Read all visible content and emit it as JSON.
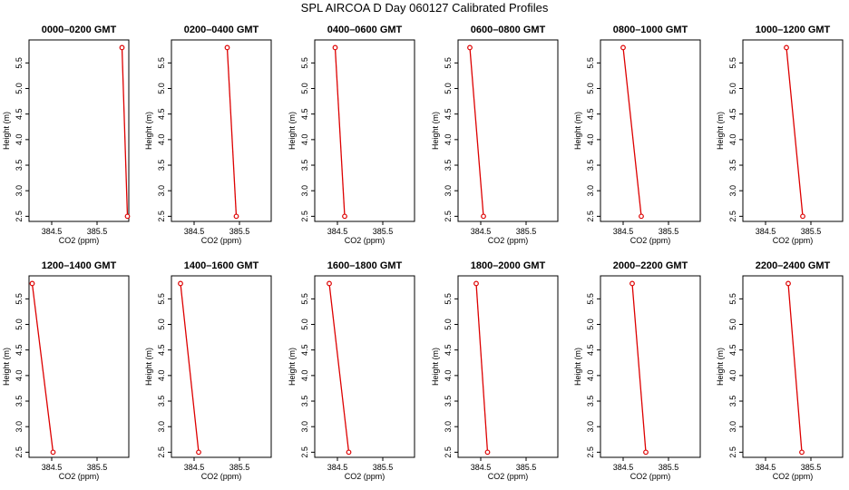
{
  "title": "SPL AIRCOA D  Day 060127  Calibrated Profiles",
  "colors": {
    "series": "#dd0000",
    "axis": "#000000"
  },
  "chart_data": [
    {
      "type": "line",
      "title": "0000–0200 GMT",
      "xlabel": "CO2 (ppm)",
      "ylabel": "Height (m)",
      "xlim": [
        384.0,
        386.2
      ],
      "ylim": [
        2.4,
        5.95
      ],
      "xticks": [
        384.5,
        385.5
      ],
      "xtick_labels": [
        "384.5",
        "385.5"
      ],
      "yticks": [
        2.5,
        3.0,
        3.5,
        4.0,
        4.5,
        5.0,
        5.5
      ],
      "ytick_labels": [
        "2.5",
        "3.0",
        "3.5",
        "4.0",
        "4.5",
        "5.0",
        "5.5"
      ],
      "x": [
        386.05,
        386.17
      ],
      "y": [
        5.8,
        2.5
      ]
    },
    {
      "type": "line",
      "title": "0200–0400 GMT",
      "xlabel": "CO2 (ppm)",
      "ylabel": "Height (m)",
      "xlim": [
        384.0,
        386.2
      ],
      "ylim": [
        2.4,
        5.95
      ],
      "xticks": [
        384.5,
        385.5
      ],
      "xtick_labels": [
        "384.5",
        "385.5"
      ],
      "yticks": [
        2.5,
        3.0,
        3.5,
        4.0,
        4.5,
        5.0,
        5.5
      ],
      "ytick_labels": [
        "2.5",
        "3.0",
        "3.5",
        "4.0",
        "4.5",
        "5.0",
        "5.5"
      ],
      "x": [
        385.23,
        385.43
      ],
      "y": [
        5.8,
        2.5
      ]
    },
    {
      "type": "line",
      "title": "0400–0600 GMT",
      "xlabel": "CO2 (ppm)",
      "ylabel": "Height (m)",
      "xlim": [
        384.0,
        386.2
      ],
      "ylim": [
        2.4,
        5.95
      ],
      "xticks": [
        384.5,
        385.5
      ],
      "xtick_labels": [
        "384.5",
        "385.5"
      ],
      "yticks": [
        2.5,
        3.0,
        3.5,
        4.0,
        4.5,
        5.0,
        5.5
      ],
      "ytick_labels": [
        "2.5",
        "3.0",
        "3.5",
        "4.0",
        "4.5",
        "5.0",
        "5.5"
      ],
      "x": [
        384.45,
        384.66
      ],
      "y": [
        5.8,
        2.5
      ]
    },
    {
      "type": "line",
      "title": "0600–0800 GMT",
      "xlabel": "CO2 (ppm)",
      "ylabel": "Height (m)",
      "xlim": [
        384.0,
        386.2
      ],
      "ylim": [
        2.4,
        5.95
      ],
      "xticks": [
        384.5,
        385.5
      ],
      "xtick_labels": [
        "384.5",
        "385.5"
      ],
      "yticks": [
        2.5,
        3.0,
        3.5,
        4.0,
        4.5,
        5.0,
        5.5
      ],
      "ytick_labels": [
        "2.5",
        "3.0",
        "3.5",
        "4.0",
        "4.5",
        "5.0",
        "5.5"
      ],
      "x": [
        384.26,
        384.56
      ],
      "y": [
        5.8,
        2.5
      ]
    },
    {
      "type": "line",
      "title": "0800–1000 GMT",
      "xlabel": "CO2 (ppm)",
      "ylabel": "Height (m)",
      "xlim": [
        384.0,
        386.2
      ],
      "ylim": [
        2.4,
        5.95
      ],
      "xticks": [
        384.5,
        385.5
      ],
      "xtick_labels": [
        "384.5",
        "385.5"
      ],
      "yticks": [
        2.5,
        3.0,
        3.5,
        4.0,
        4.5,
        5.0,
        5.5
      ],
      "ytick_labels": [
        "2.5",
        "3.0",
        "3.5",
        "4.0",
        "4.5",
        "5.0",
        "5.5"
      ],
      "x": [
        384.5,
        384.9
      ],
      "y": [
        5.8,
        2.5
      ]
    },
    {
      "type": "line",
      "title": "1000–1200 GMT",
      "xlabel": "CO2 (ppm)",
      "ylabel": "Height (m)",
      "xlim": [
        384.0,
        386.2
      ],
      "ylim": [
        2.4,
        5.95
      ],
      "xticks": [
        384.5,
        385.5
      ],
      "xtick_labels": [
        "384.5",
        "385.5"
      ],
      "yticks": [
        2.5,
        3.0,
        3.5,
        4.0,
        4.5,
        5.0,
        5.5
      ],
      "ytick_labels": [
        "2.5",
        "3.0",
        "3.5",
        "4.0",
        "4.5",
        "5.0",
        "5.5"
      ],
      "x": [
        384.96,
        385.32
      ],
      "y": [
        5.8,
        2.5
      ]
    },
    {
      "type": "line",
      "title": "1200–1400 GMT",
      "xlabel": "CO2 (ppm)",
      "ylabel": "Height (m)",
      "xlim": [
        384.0,
        386.2
      ],
      "ylim": [
        2.4,
        5.95
      ],
      "xticks": [
        384.5,
        385.5
      ],
      "xtick_labels": [
        "384.5",
        "385.5"
      ],
      "yticks": [
        2.5,
        3.0,
        3.5,
        4.0,
        4.5,
        5.0,
        5.5
      ],
      "ytick_labels": [
        "2.5",
        "3.0",
        "3.5",
        "4.0",
        "4.5",
        "5.0",
        "5.5"
      ],
      "x": [
        384.07,
        384.53
      ],
      "y": [
        5.8,
        2.5
      ]
    },
    {
      "type": "line",
      "title": "1400–1600 GMT",
      "xlabel": "CO2 (ppm)",
      "ylabel": "Height (m)",
      "xlim": [
        384.0,
        386.2
      ],
      "ylim": [
        2.4,
        5.95
      ],
      "xticks": [
        384.5,
        385.5
      ],
      "xtick_labels": [
        "384.5",
        "385.5"
      ],
      "yticks": [
        2.5,
        3.0,
        3.5,
        4.0,
        4.5,
        5.0,
        5.5
      ],
      "ytick_labels": [
        "2.5",
        "3.0",
        "3.5",
        "4.0",
        "4.5",
        "5.0",
        "5.5"
      ],
      "x": [
        384.2,
        384.6
      ],
      "y": [
        5.8,
        2.5
      ]
    },
    {
      "type": "line",
      "title": "1600–1800 GMT",
      "xlabel": "CO2 (ppm)",
      "ylabel": "Height (m)",
      "xlim": [
        384.0,
        386.2
      ],
      "ylim": [
        2.4,
        5.95
      ],
      "xticks": [
        384.5,
        385.5
      ],
      "xtick_labels": [
        "384.5",
        "385.5"
      ],
      "yticks": [
        2.5,
        3.0,
        3.5,
        4.0,
        4.5,
        5.0,
        5.5
      ],
      "ytick_labels": [
        "2.5",
        "3.0",
        "3.5",
        "4.0",
        "4.5",
        "5.0",
        "5.5"
      ],
      "x": [
        384.32,
        384.75
      ],
      "y": [
        5.8,
        2.5
      ]
    },
    {
      "type": "line",
      "title": "1800–2000 GMT",
      "xlabel": "CO2 (ppm)",
      "ylabel": "Height (m)",
      "xlim": [
        384.0,
        386.2
      ],
      "ylim": [
        2.4,
        5.95
      ],
      "xticks": [
        384.5,
        385.5
      ],
      "xtick_labels": [
        "384.5",
        "385.5"
      ],
      "yticks": [
        2.5,
        3.0,
        3.5,
        4.0,
        4.5,
        5.0,
        5.5
      ],
      "ytick_labels": [
        "2.5",
        "3.0",
        "3.5",
        "4.0",
        "4.5",
        "5.0",
        "5.5"
      ],
      "x": [
        384.4,
        384.65
      ],
      "y": [
        5.8,
        2.5
      ]
    },
    {
      "type": "line",
      "title": "2000–2200 GMT",
      "xlabel": "CO2 (ppm)",
      "ylabel": "Height (m)",
      "xlim": [
        384.0,
        386.2
      ],
      "ylim": [
        2.4,
        5.95
      ],
      "xticks": [
        384.5,
        385.5
      ],
      "xtick_labels": [
        "384.5",
        "385.5"
      ],
      "yticks": [
        2.5,
        3.0,
        3.5,
        4.0,
        4.5,
        5.0,
        5.5
      ],
      "ytick_labels": [
        "2.5",
        "3.0",
        "3.5",
        "4.0",
        "4.5",
        "5.0",
        "5.5"
      ],
      "x": [
        384.7,
        385.0
      ],
      "y": [
        5.8,
        2.5
      ]
    },
    {
      "type": "line",
      "title": "2200–2400 GMT",
      "xlabel": "CO2 (ppm)",
      "ylabel": "Height (m)",
      "xlim": [
        384.0,
        386.2
      ],
      "ylim": [
        2.4,
        5.95
      ],
      "xticks": [
        384.5,
        385.5
      ],
      "xtick_labels": [
        "384.5",
        "385.5"
      ],
      "yticks": [
        2.5,
        3.0,
        3.5,
        4.0,
        4.5,
        5.0,
        5.5
      ],
      "ytick_labels": [
        "2.5",
        "3.0",
        "3.5",
        "4.0",
        "4.5",
        "5.0",
        "5.5"
      ],
      "x": [
        385.0,
        385.3
      ],
      "y": [
        5.8,
        2.5
      ]
    }
  ]
}
